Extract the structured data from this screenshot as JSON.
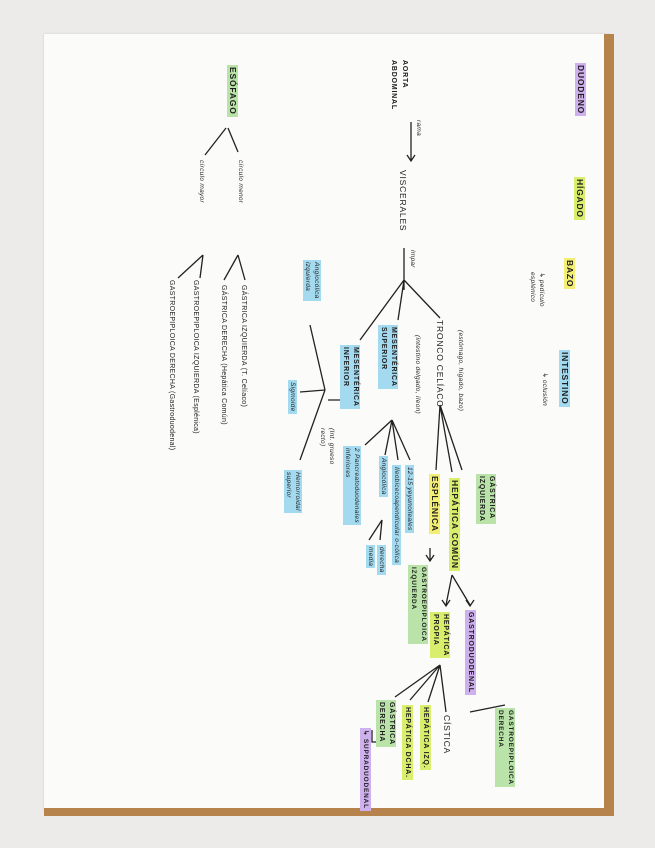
{
  "colors": {
    "purple": "#cfb0ee",
    "lime": "#d8ee6c",
    "yellow": "#f3ee74",
    "blue": "#a3daf0",
    "green": "#b9e3a8",
    "frame": "#b7834d"
  },
  "organs": {
    "duodeno": "DUODENO",
    "higado": "HÍGADO",
    "bazo": "BAZO",
    "bazo_note": "↳ pedículo\nesplénico",
    "intestino": "INTESTINO",
    "intestino_note": "↳ oclusión"
  },
  "aorta": {
    "title": "AORTA\nABDOMINAL",
    "rama": "rama",
    "viscerales": "VISCERALES",
    "impar": "impar"
  },
  "tronco": {
    "label": "TRONCO CELÍACO",
    "note": "(estómago, hígado, bazo)",
    "gastrica_izq": "GÁSTRICA\nIZQUIERDA",
    "hepatica_comun": "HEPÁTICA COMÚN",
    "esplenica": "ESPLÉNICA",
    "gastroepiploica_izq": "GASTROEPIPLOICA\nIZQUIERDA",
    "hepatica_propia": "HEPÁTICA\nPROPIA",
    "gastroduodenal": "GASTRODUODENAL",
    "gastroepiploica_der": "GASTROEPIPLOICA\nDERECHA",
    "cistica": "CÍSTICA",
    "hepatica_izq": "HEPÁTICA IZQ.",
    "hepatica_dcha": "HEPÁTICA DCHA.",
    "gastrica_der": "GÁSTRICA\nDERECHA",
    "supraduodenal": "↳ SUPRADUODENAL"
  },
  "mes_sup": {
    "label": "MESENTÉRICA\nSUPERIOR",
    "note": "(intestino delgado, íleon)",
    "yeyunoileales": "12-15 yeyunoileales",
    "ileobicecoapendicular": "Ileobicecoapendicular o-cólica",
    "angiocolica": "Angiocólica",
    "derecha": "derecha",
    "media": "media",
    "pancreatoduodenales": "2 Pancreatoduodenales\ninferiores"
  },
  "mes_inf": {
    "label": "MESENTÉRICA\nINFERIOR",
    "note": "(Int. grueso\nrecto)",
    "angiocolica_izq": "Angiocólica\nizquierda",
    "sigmoide": "Sigmoide",
    "hemorroidal": "Hemorroidal\nsuperior"
  },
  "esofago": {
    "label": "ESÓFAGO",
    "menor": "círculo menor",
    "mayor": "círculo mayor",
    "gi": "GÁSTRICA IZQUIERDA (T. Celíaco)",
    "gd": "GÁSTRICA DERECHA (Hepática Común)",
    "gei": "GASTROEPIPLOICA IZQUIERDA (Esplénica)",
    "ged": "GASTROEPIPLOICA DERECHA (Gastroduodenal)"
  }
}
